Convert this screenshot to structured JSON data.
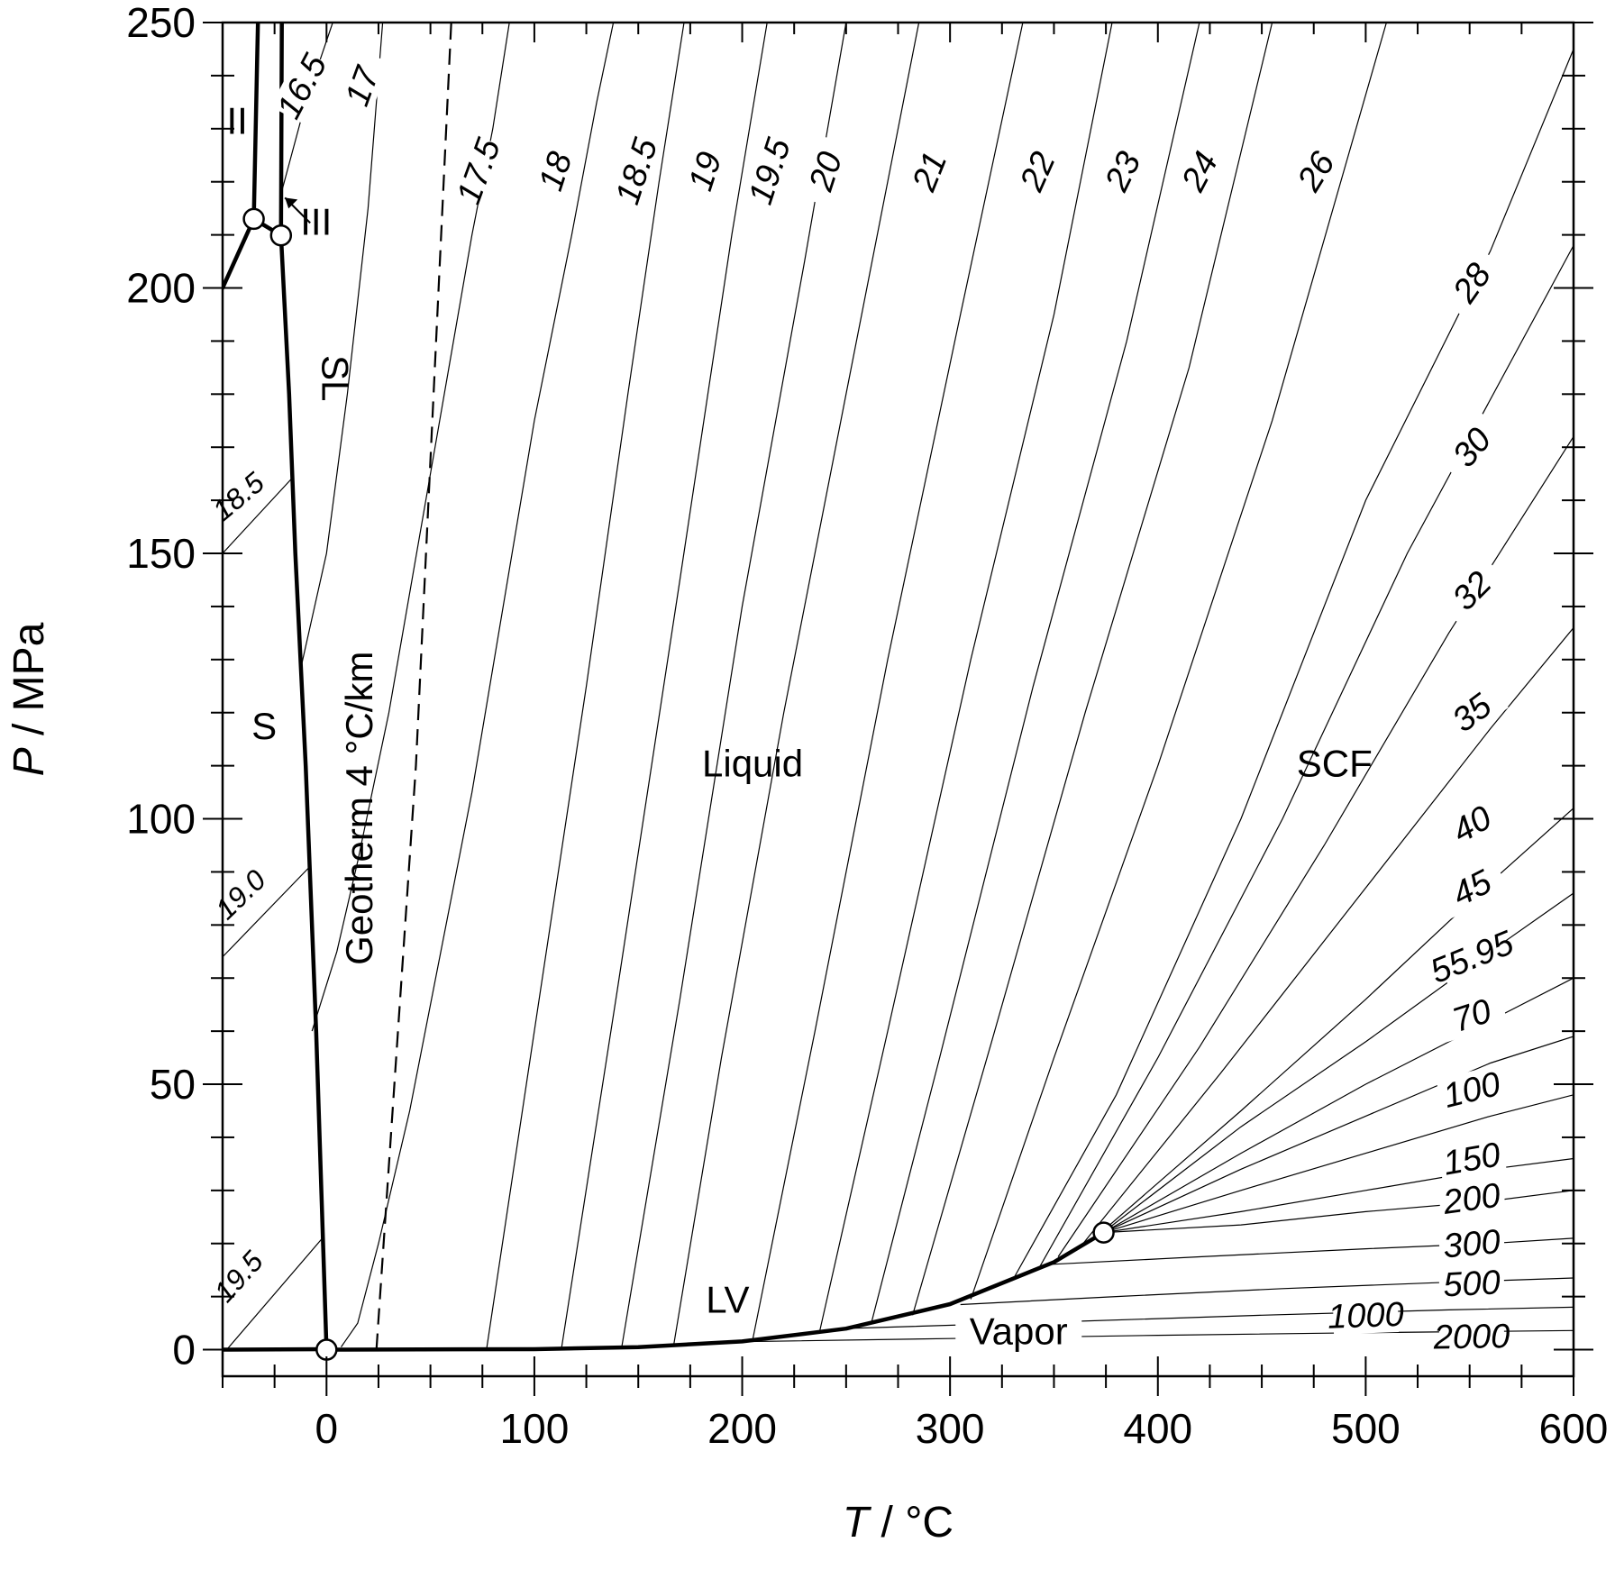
{
  "chart_data": {
    "type": "line",
    "xlabel": "T / °C",
    "ylabel": "P / MPa",
    "xlim": [
      -50,
      600
    ],
    "ylim": [
      -5,
      250
    ],
    "x_ticks": [
      0,
      100,
      200,
      300,
      400,
      500,
      600
    ],
    "y_ticks": [
      0,
      50,
      100,
      150,
      200,
      250
    ],
    "axis_labels": {
      "x_var": "T",
      "x_unit": " / °C",
      "y_var": "P",
      "y_unit": " / MPa"
    },
    "regions": [
      {
        "label": "S",
        "at": [
          -30,
          115
        ]
      },
      {
        "label": "SL",
        "at": [
          -2,
          183
        ]
      },
      {
        "label": "II",
        "at": [
          -43,
          229
        ]
      },
      {
        "label": "III",
        "at": [
          -5,
          210
        ]
      },
      {
        "label": "Liquid",
        "at": [
          205,
          108
        ]
      },
      {
        "label": "SCF",
        "at": [
          485,
          108
        ]
      },
      {
        "label": "LV",
        "at": [
          193,
          7
        ]
      },
      {
        "label": "Vapor",
        "at": [
          333,
          1
        ]
      },
      {
        "label": "Geotherm 4 °C/km",
        "at": [
          22,
          102
        ]
      }
    ],
    "phase_boundaries": [
      {
        "name": "ice-Ih melting",
        "points": [
          [
            0,
            0.1
          ],
          [
            -5,
            60
          ],
          [
            -10,
            110
          ],
          [
            -15,
            150
          ],
          [
            -18,
            180
          ],
          [
            -21.9,
            209.9
          ]
        ]
      },
      {
        "name": "ice-III melting",
        "points": [
          [
            -21.9,
            209.9
          ],
          [
            -21.5,
            250
          ]
        ]
      },
      {
        "name": "ice-Ih/II",
        "points": [
          [
            -50,
            200
          ],
          [
            -35,
            213
          ]
        ]
      },
      {
        "name": "ice-Ih/III",
        "points": [
          [
            -35,
            213
          ],
          [
            -21.9,
            209.9
          ]
        ]
      },
      {
        "name": "ice-II",
        "points": [
          [
            -35,
            213
          ],
          [
            -33,
            250
          ]
        ]
      },
      {
        "name": "ice-Ih sublimation",
        "points": [
          [
            -50,
            0
          ],
          [
            0,
            0.1
          ]
        ]
      },
      {
        "name": "liquid-vapor",
        "points": [
          [
            0.01,
            0
          ],
          [
            100,
            0.1
          ],
          [
            150,
            0.48
          ],
          [
            200,
            1.55
          ],
          [
            250,
            3.97
          ],
          [
            300,
            8.59
          ],
          [
            350,
            16.5
          ],
          [
            373.9,
            22.06
          ]
        ]
      }
    ],
    "triple_points": [
      [
        0.01,
        0
      ],
      [
        -21.9,
        209.9
      ],
      [
        -35,
        213
      ]
    ],
    "critical_point": [
      373.9,
      22.06
    ],
    "geotherm": {
      "label": "Geotherm 4 °C/km",
      "points": [
        [
          24,
          0
        ],
        [
          43,
          110
        ],
        [
          60,
          250
        ]
      ]
    },
    "isochores_liquid": [
      {
        "label": "16.5",
        "label_at": [
          -12,
          238
        ],
        "points": [
          [
            -21.7,
            218
          ],
          [
            -10,
            235
          ],
          [
            3,
            250
          ]
        ]
      },
      {
        "label": "17",
        "label_at": [
          17,
          238
        ],
        "points": [
          [
            -12,
            129
          ],
          [
            0,
            150
          ],
          [
            10,
            180
          ],
          [
            20,
            215
          ],
          [
            27,
            250
          ]
        ]
      },
      {
        "label": "17.5",
        "label_at": [
          73,
          222
        ],
        "points": [
          [
            -7,
            60
          ],
          [
            5,
            75
          ],
          [
            15,
            92
          ],
          [
            30,
            120
          ],
          [
            50,
            165
          ],
          [
            70,
            210
          ],
          [
            80,
            230
          ],
          [
            88,
            250
          ]
        ]
      },
      {
        "label": "18",
        "label_at": [
          110,
          222
        ],
        "points": [
          [
            7,
            0.5
          ],
          [
            15,
            5
          ],
          [
            25,
            20
          ],
          [
            40,
            45
          ],
          [
            70,
            105
          ],
          [
            100,
            175
          ],
          [
            118,
            210
          ],
          [
            130,
            235
          ],
          [
            138,
            250
          ]
        ]
      },
      {
        "label": "18.5",
        "label_at": [
          149,
          222
        ],
        "points": [
          [
            77,
            0.1
          ],
          [
            100,
            60
          ],
          [
            125,
            125
          ],
          [
            145,
            180
          ],
          [
            160,
            220
          ],
          [
            172,
            250
          ]
        ]
      },
      {
        "label": "19",
        "label_at": [
          182,
          222
        ],
        "points": [
          [
            113,
            0.1
          ],
          [
            140,
            68
          ],
          [
            170,
            145
          ],
          [
            195,
            210
          ],
          [
            212,
            250
          ]
        ]
      },
      {
        "label": "19.5",
        "label_at": [
          213,
          222
        ],
        "points": [
          [
            142,
            0.4
          ],
          [
            170,
            66
          ],
          [
            200,
            140
          ],
          [
            230,
            205
          ],
          [
            250,
            250
          ]
        ]
      },
      {
        "label": "20",
        "label_at": [
          240,
          222
        ],
        "points": [
          [
            167,
            0.7
          ],
          [
            190,
            55
          ],
          [
            220,
            120
          ],
          [
            250,
            180
          ],
          [
            285,
            250
          ]
        ]
      },
      {
        "label": "21",
        "label_at": [
          290,
          222
        ],
        "points": [
          [
            205,
            1.8
          ],
          [
            235,
            60
          ],
          [
            270,
            130
          ],
          [
            305,
            195
          ],
          [
            335,
            250
          ]
        ]
      },
      {
        "label": "22",
        "label_at": [
          342,
          222
        ],
        "points": [
          [
            237,
            3
          ],
          [
            270,
            60
          ],
          [
            310,
            130
          ],
          [
            350,
            195
          ],
          [
            378,
            250
          ]
        ]
      },
      {
        "label": "23",
        "label_at": [
          383,
          222
        ],
        "points": [
          [
            262,
            4.8
          ],
          [
            295,
            55
          ],
          [
            340,
            125
          ],
          [
            385,
            190
          ],
          [
            420,
            250
          ]
        ]
      },
      {
        "label": "24",
        "label_at": [
          420,
          222
        ],
        "points": [
          [
            282,
            6.5
          ],
          [
            320,
            58
          ],
          [
            365,
            120
          ],
          [
            415,
            185
          ],
          [
            455,
            250
          ]
        ]
      },
      {
        "label": "26",
        "label_at": [
          476,
          222
        ],
        "points": [
          [
            310,
            9.5
          ],
          [
            350,
            55
          ],
          [
            400,
            110
          ],
          [
            455,
            175
          ],
          [
            510,
            250
          ]
        ]
      }
    ],
    "isochores_solid": [
      {
        "label": "18.5",
        "label_at": [
          -43,
          161
        ],
        "points": [
          [
            -50,
            150
          ],
          [
            -17,
            164
          ]
        ]
      },
      {
        "label": "19.0",
        "label_at": [
          -42,
          86
        ],
        "points": [
          [
            -50,
            74
          ],
          [
            -8,
            91
          ]
        ]
      },
      {
        "label": "19.5",
        "label_at": [
          -43,
          14
        ],
        "points": [
          [
            -48,
            0
          ],
          [
            -2,
            21
          ]
        ]
      }
    ],
    "isochores_fan": [
      {
        "label": "28",
        "label_at": [
          551,
          201
        ],
        "points": [
          [
            330,
            13
          ],
          [
            380,
            48
          ],
          [
            440,
            100
          ],
          [
            500,
            160
          ],
          [
            560,
            207
          ],
          [
            600,
            245
          ]
        ]
      },
      {
        "label": "30",
        "label_at": [
          551,
          170
        ],
        "points": [
          [
            343,
            15.5
          ],
          [
            400,
            55
          ],
          [
            460,
            100
          ],
          [
            520,
            150
          ],
          [
            600,
            208
          ]
        ]
      },
      {
        "label": "32",
        "label_at": [
          551,
          143
        ],
        "points": [
          [
            352,
            17.5
          ],
          [
            420,
            57
          ],
          [
            480,
            95
          ],
          [
            540,
            135
          ],
          [
            600,
            172
          ]
        ]
      },
      {
        "label": "35",
        "label_at": [
          551,
          120
        ],
        "points": [
          [
            362,
            19
          ],
          [
            430,
            52
          ],
          [
            500,
            87
          ],
          [
            560,
            117
          ],
          [
            600,
            136
          ]
        ]
      },
      {
        "label": "40",
        "label_at": [
          551,
          99
        ],
        "points": [
          [
            368,
            20.5
          ],
          [
            440,
            45
          ],
          [
            500,
            66
          ],
          [
            560,
            88
          ],
          [
            600,
            102
          ]
        ]
      },
      {
        "label": "45",
        "label_at": [
          551,
          87
        ],
        "points": [
          [
            371,
            21.3
          ],
          [
            440,
            42
          ],
          [
            500,
            58
          ],
          [
            560,
            75
          ],
          [
            600,
            86
          ]
        ]
      },
      {
        "label": "55.95",
        "label_at": [
          551,
          74
        ],
        "points": [
          [
            373.9,
            22.06
          ],
          [
            440,
            37
          ],
          [
            500,
            50
          ],
          [
            560,
            62
          ],
          [
            600,
            70
          ]
        ]
      },
      {
        "label": "70",
        "label_at": [
          551,
          63
        ],
        "points": [
          [
            373.9,
            22.06
          ],
          [
            440,
            34
          ],
          [
            500,
            44
          ],
          [
            560,
            54
          ],
          [
            600,
            59
          ]
        ]
      },
      {
        "label": "100",
        "label_at": [
          551,
          49
        ],
        "points": [
          [
            373.9,
            22.06
          ],
          [
            440,
            30
          ],
          [
            500,
            37
          ],
          [
            560,
            44
          ],
          [
            600,
            48
          ]
        ]
      },
      {
        "label": "150",
        "label_at": [
          551,
          36
        ],
        "points": [
          [
            373.9,
            22.06
          ],
          [
            440,
            26
          ],
          [
            500,
            30
          ],
          [
            560,
            34
          ],
          [
            600,
            36
          ]
        ]
      },
      {
        "label": "200",
        "label_at": [
          551,
          28.5
        ],
        "points": [
          [
            373.9,
            22.06
          ],
          [
            440,
            23.5
          ],
          [
            500,
            26
          ],
          [
            560,
            28
          ],
          [
            600,
            30
          ]
        ]
      },
      {
        "label": "300",
        "label_at": [
          551,
          20
        ],
        "points": [
          [
            345,
            16
          ],
          [
            420,
            17.5
          ],
          [
            500,
            19
          ],
          [
            560,
            20
          ],
          [
            600,
            21
          ]
        ]
      },
      {
        "label": "500",
        "label_at": [
          551,
          12.5
        ],
        "points": [
          [
            305,
            8.5
          ],
          [
            380,
            10
          ],
          [
            460,
            11.5
          ],
          [
            540,
            12.7
          ],
          [
            600,
            13.5
          ]
        ]
      },
      {
        "label": "1000",
        "label_at": [
          500,
          6.5
        ],
        "points": [
          [
            250,
            4
          ],
          [
            350,
            5.2
          ],
          [
            450,
            6.5
          ],
          [
            540,
            7.5
          ],
          [
            600,
            8
          ]
        ]
      },
      {
        "label": "2000",
        "label_at": [
          551,
          2.5
        ],
        "points": [
          [
            200,
            1.5
          ],
          [
            300,
            2.1
          ],
          [
            400,
            2.7
          ],
          [
            500,
            3.2
          ],
          [
            600,
            3.6
          ]
        ]
      }
    ],
    "label_angles": {
      "16.5": 62,
      "17": 70,
      "17.5": 70,
      "18": 72,
      "18.5": 72,
      "19": 72,
      "19.5": 72,
      "20": 72,
      "21": 68,
      "22": 66,
      "23": 64,
      "24": 62,
      "26": 58,
      "28": 55,
      "30": 50,
      "32": 45,
      "35": 37,
      "40": 30,
      "45": 27,
      "55.95": 22,
      "70": 18,
      "100": 14,
      "150": 10,
      "200": 8,
      "300": 5,
      "500": 3,
      "1000": 2,
      "2000": 1,
      "18.5s": 40,
      "19.0s": 44,
      "19.5s": 48
    }
  }
}
